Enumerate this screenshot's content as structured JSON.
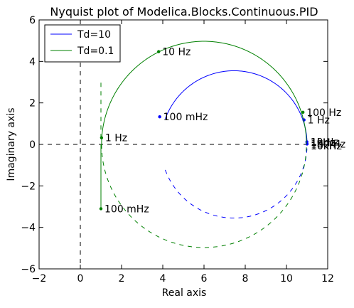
{
  "chart_data": {
    "type": "line",
    "title": "Nyquist plot of Modelica.Blocks.Continuous.PID",
    "xlabel": "Real axis",
    "ylabel": "Imaginary axis",
    "xlim": [
      -2,
      12
    ],
    "ylim": [
      -6,
      6
    ],
    "xticks": [
      "−2",
      "0",
      "2",
      "4",
      "6",
      "8",
      "10",
      "12"
    ],
    "yticks": [
      "−6",
      "−4",
      "−2",
      "0",
      "2",
      "4",
      "6"
    ],
    "grid": false,
    "legend_position": "top-left",
    "zero_lines": true,
    "series": [
      {
        "name": "Td=10",
        "color": "#0000ff",
        "circle": {
          "center_re": 7.45,
          "center_im": 0,
          "radius": 3.55
        },
        "solid_from_re": 3.85,
        "solid_from_im": 1.33,
        "solid_to_re": 11.0,
        "solid_to_im": 0.0,
        "points": [
          {
            "label": "100 mHz",
            "re": 3.85,
            "im": 1.33
          },
          {
            "label": "1 Hz",
            "re": 10.85,
            "im": 1.18
          },
          {
            "label": "10 Hz",
            "re": 10.99,
            "im": 0.12
          },
          {
            "label": "100 Hz",
            "re": 11.0,
            "im": 0.02
          }
        ]
      },
      {
        "name": "Td=0.1",
        "color": "#008000",
        "circle": {
          "center_re": 6.0,
          "center_im": 0,
          "radius": 4.97
        },
        "extra_segment": {
          "re": 1.0,
          "im_from": 0.3,
          "im_to": -3.1
        },
        "mirror_dashed_re": 1.0,
        "mirror_dashed_from": 0.3,
        "mirror_dashed_to": 3.1,
        "points": [
          {
            "label": "100 mHz",
            "re": 1.0,
            "im": -3.1
          },
          {
            "label": "1 Hz",
            "re": 1.03,
            "im": 0.32
          },
          {
            "label": "10 Hz",
            "re": 3.8,
            "im": 4.47
          },
          {
            "label": "100 Hz",
            "re": 10.8,
            "im": 1.55
          }
        ]
      }
    ],
    "near_axis_labels": [
      "1kHz",
      "10kHz",
      "1kHz",
      "10kHz"
    ]
  }
}
